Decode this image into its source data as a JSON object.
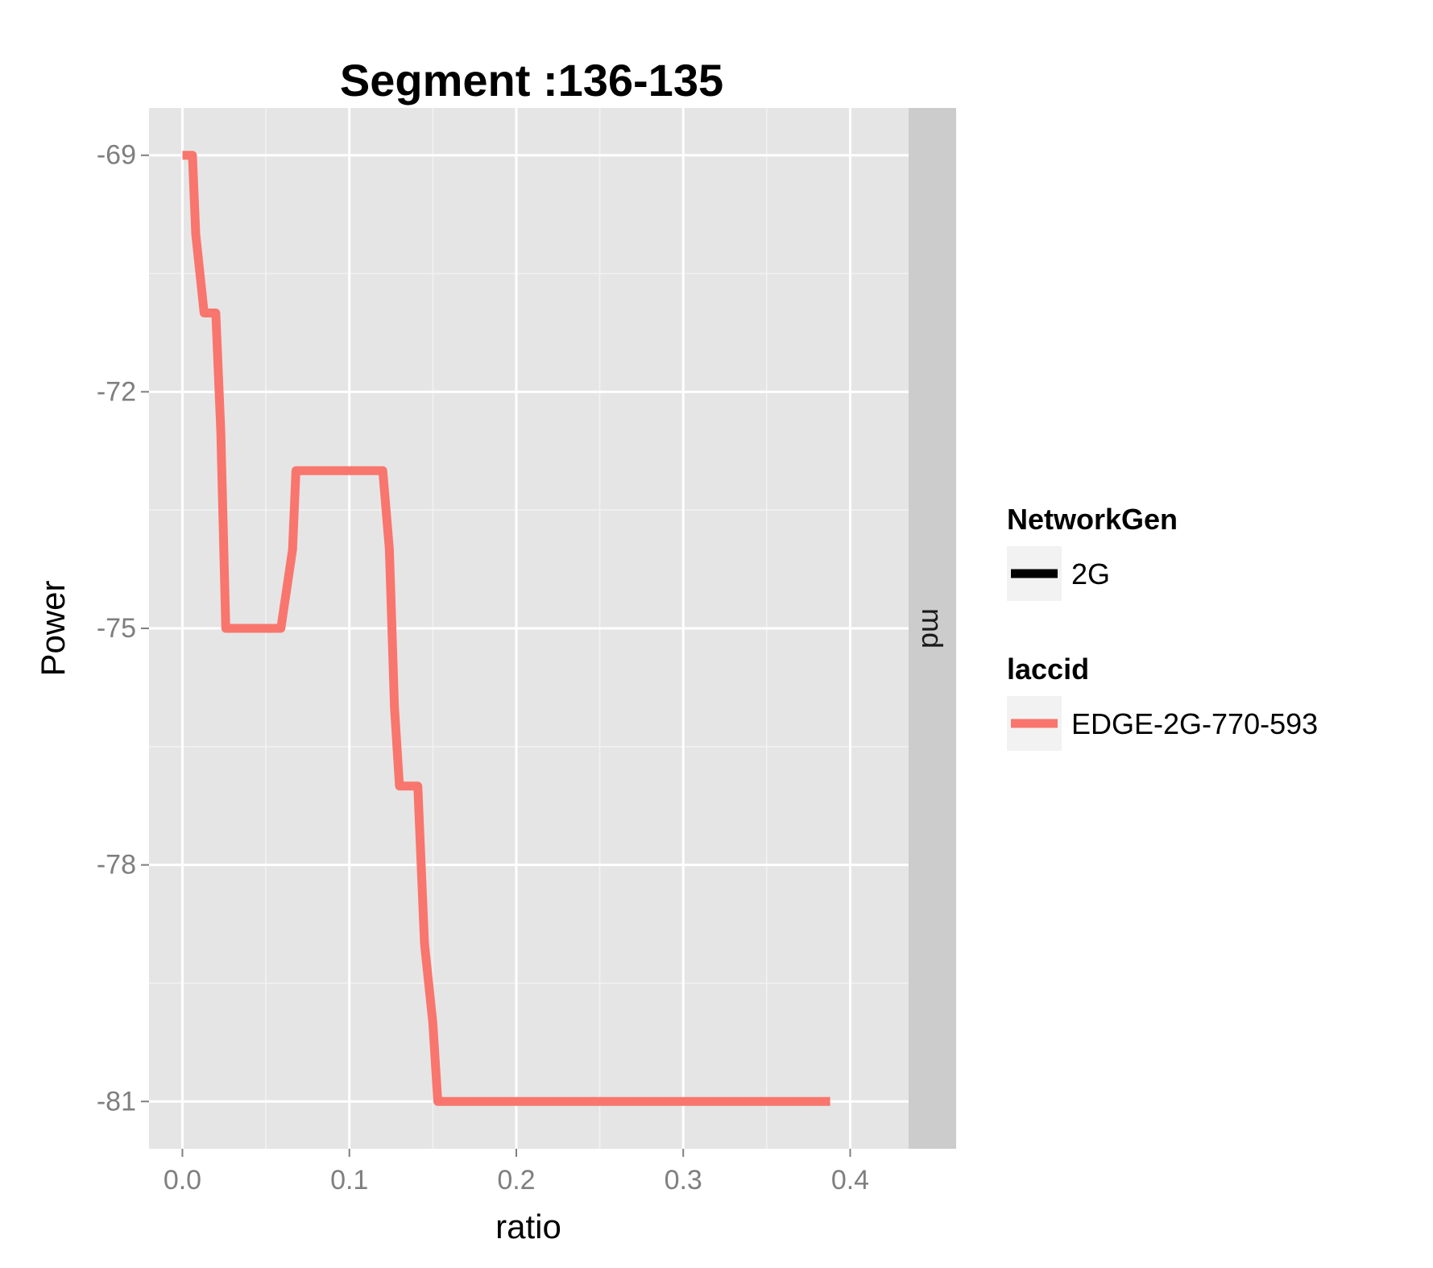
{
  "chart_data": {
    "type": "line",
    "title": "Segment :136-135",
    "xlabel": "ratio",
    "ylabel": "Power",
    "xlim": [
      -0.02,
      0.435
    ],
    "ylim": [
      -81.6,
      -68.4
    ],
    "x_ticks": [
      0.0,
      0.1,
      0.2,
      0.3,
      0.4
    ],
    "x_tick_labels": [
      "0.0",
      "0.1",
      "0.2",
      "0.3",
      "0.4"
    ],
    "y_ticks": [
      -69,
      -72,
      -75,
      -78,
      -81
    ],
    "y_tick_labels": [
      "-69",
      "-72",
      "-75",
      "-78",
      "-81"
    ],
    "grid": true,
    "facet_label": "md",
    "legend_placement": "right",
    "legends": [
      {
        "title": "NetworkGen",
        "items": [
          {
            "label": "2G",
            "color": "#000000"
          }
        ]
      },
      {
        "title": "laccid",
        "items": [
          {
            "label": "EDGE-2G-770-593",
            "color": "#F8766D"
          }
        ]
      }
    ],
    "series": [
      {
        "name": "EDGE-2G-770-593",
        "color": "#F8766D",
        "x": [
          0.0,
          0.006,
          0.008,
          0.013,
          0.018,
          0.02,
          0.023,
          0.026,
          0.055,
          0.059,
          0.066,
          0.068,
          0.118,
          0.12,
          0.124,
          0.127,
          0.13,
          0.138,
          0.141,
          0.145,
          0.15,
          0.153,
          0.388
        ],
        "y": [
          -69,
          -69,
          -70,
          -71,
          -71,
          -71,
          -72.5,
          -75,
          -75,
          -75,
          -74,
          -73,
          -73,
          -73,
          -74,
          -76,
          -77,
          -77,
          -77,
          -79,
          -80,
          -81,
          -81
        ]
      }
    ]
  }
}
